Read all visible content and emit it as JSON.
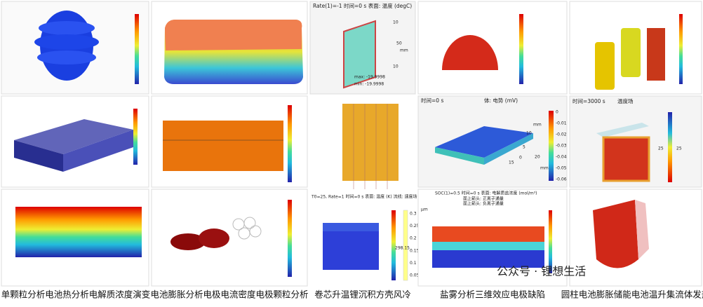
{
  "captions": [
    "单颗粒分析电池热分析电解质浓度演变",
    "电池膨胀分析电极电流密度电极颗粒分析",
    "卷芯升温锂沉积方壳风冷",
    "盐雾分析三维效应电极缺陷",
    "圆柱电池膨胀储能电池温升集流体发热"
  ],
  "watermark": "公众号 · 锂想生活",
  "panels": {
    "thermal_plate": {
      "title": "Rate(1)=-1 时间=0 s 表面: 温度 (degC)",
      "max": "max: -19.9998",
      "min": "min: -19.9998",
      "axis": [
        "10",
        "50",
        "mm",
        "10"
      ]
    },
    "potential": {
      "time": "时间=0 s",
      "title": "体: 电势 (mV)",
      "ticks": [
        "0",
        "-0.01",
        "-0.02",
        "-0.03",
        "-0.04",
        "-0.05",
        "-0.06"
      ],
      "axis": [
        "mm",
        "10",
        "5",
        "0",
        "20",
        "15",
        "mm"
      ]
    },
    "prismatic": {
      "time": "时间=3000 s",
      "title": "温度场",
      "ticks": [
        "25",
        "25"
      ]
    },
    "cooling": {
      "title": "T0=25, Rate=1 时间=0 s 表面: 温度 (K) 流线: 速度场",
      "ticks": [
        "0.3",
        "0.25",
        "0.2",
        "0.15",
        "0.1",
        "0.05"
      ],
      "temp": "298.15"
    },
    "salt": {
      "title": "SOC(1)=0.5 时间=0 s 表面: 电解质盐浓度 (mol/m³)",
      "arrow1": "面上箭头: 正离子通量",
      "arrow2": "面上箭头: 负离子通量",
      "unit": "μm"
    }
  }
}
